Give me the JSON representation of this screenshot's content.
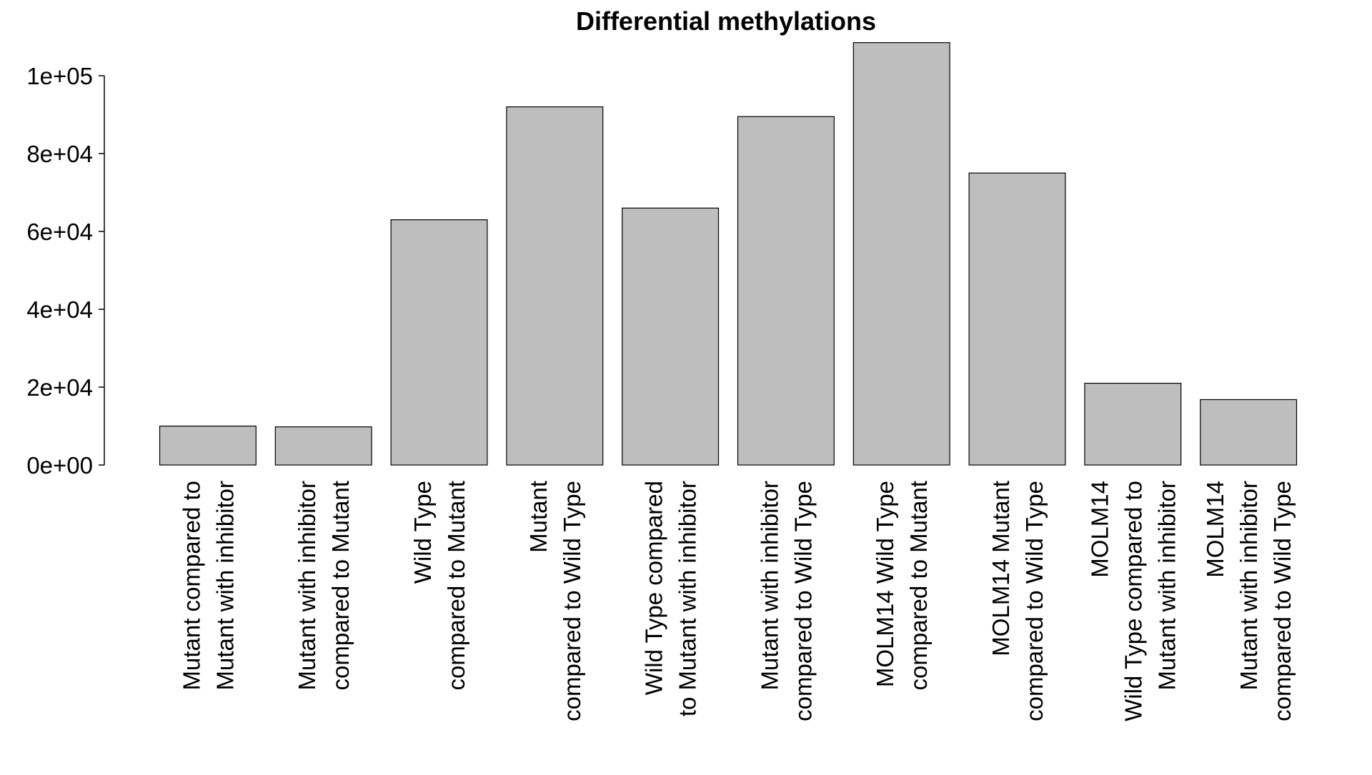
{
  "chart_data": {
    "type": "bar",
    "title": "Differential methylations",
    "xlabel": "",
    "ylabel": "",
    "ylim": [
      0,
      110000
    ],
    "yticks": [
      0,
      20000,
      40000,
      60000,
      80000,
      100000
    ],
    "ytick_labels": [
      "0e+00",
      "2e+04",
      "4e+04",
      "6e+04",
      "8e+04",
      "1e+05"
    ],
    "grid": false,
    "legend": "none",
    "colors": {
      "bar_fill": "#bebebe",
      "bar_stroke": "#000000",
      "axis": "#000000",
      "background": "#ffffff"
    },
    "categories": [
      [
        "Mutant compared to",
        "Mutant with inhibitor"
      ],
      [
        "Mutant with inhibitor",
        "compared to Mutant"
      ],
      [
        "Wild Type",
        "compared to Mutant"
      ],
      [
        "Mutant",
        "compared to Wild Type"
      ],
      [
        "Wild Type compared",
        "to Mutant with inhibitor"
      ],
      [
        "Mutant with inhibitor",
        "compared to Wild Type"
      ],
      [
        "MOLM14 Wild Type",
        "compared to Mutant"
      ],
      [
        "MOLM14 Mutant",
        "compared to Wild Type"
      ],
      [
        "MOLM14",
        "Wild Type compared to",
        "Mutant with inhibitor"
      ],
      [
        "MOLM14",
        "Mutant with inhibitor",
        "compared to Wild Type"
      ]
    ],
    "values": [
      10000,
      9800,
      63000,
      92000,
      66000,
      89500,
      108500,
      75000,
      21000,
      16800
    ]
  }
}
